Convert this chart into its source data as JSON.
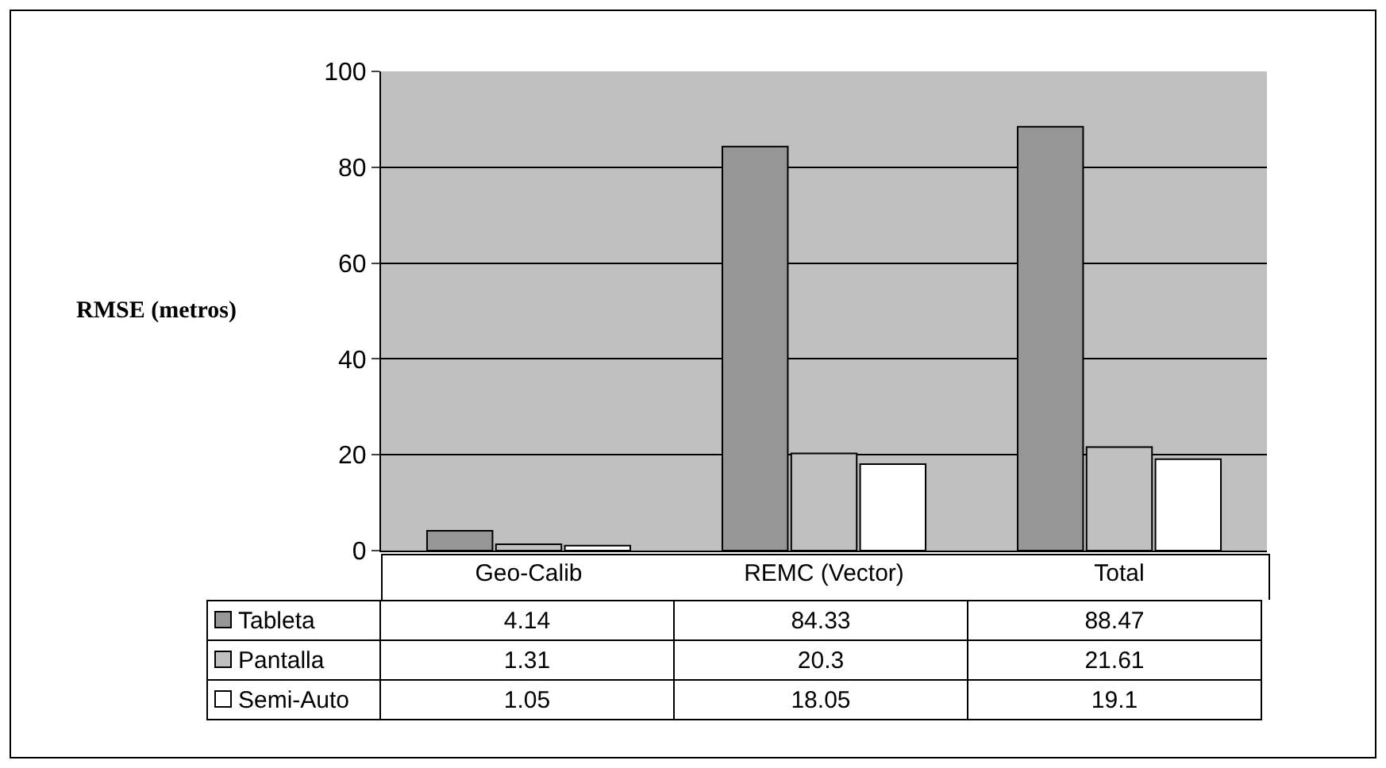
{
  "chart_data": {
    "type": "bar",
    "ylabel": "RMSE (metros)",
    "categories": [
      "Geo-Calib",
      "REMC (Vector)",
      "Total"
    ],
    "series": [
      {
        "name": "Tableta",
        "color": "#969696",
        "values": [
          4.14,
          84.33,
          88.47
        ]
      },
      {
        "name": "Pantalla",
        "color": "#c0c0c0",
        "values": [
          1.31,
          20.3,
          21.61
        ]
      },
      {
        "name": "Semi-Auto",
        "color": "#ffffff",
        "values": [
          1.05,
          18.05,
          19.1
        ]
      }
    ],
    "ylim": [
      0,
      100
    ],
    "yticks": [
      0,
      20,
      40,
      60,
      80,
      100
    ],
    "grid": "y",
    "legend": "bottom left",
    "data_labels": true
  }
}
